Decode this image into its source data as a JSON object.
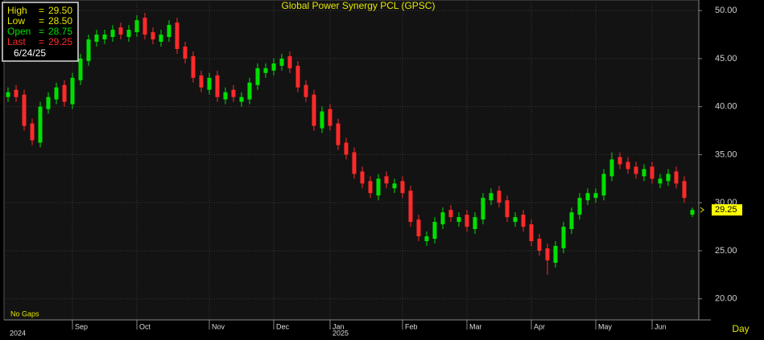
{
  "chart_data": {
    "type": "candlestick",
    "title": "Global Power Synergy PCL (GPSC)",
    "categories": [
      null,
      null,
      null,
      null,
      null,
      null,
      null,
      null,
      "Sep",
      null,
      null,
      null,
      null,
      null,
      null,
      null,
      "Oct",
      null,
      null,
      null,
      null,
      null,
      null,
      null,
      null,
      "Nov",
      null,
      null,
      null,
      null,
      null,
      null,
      null,
      "Dec",
      null,
      null,
      null,
      null,
      null,
      null,
      "Jan",
      null,
      null,
      null,
      null,
      null,
      null,
      null,
      null,
      "Feb",
      null,
      null,
      null,
      null,
      null,
      null,
      null,
      "Mar",
      null,
      null,
      null,
      null,
      null,
      null,
      null,
      "Apr",
      null,
      null,
      null,
      null,
      null,
      null,
      null,
      "May",
      null,
      null,
      null,
      null,
      null,
      null,
      "Jun",
      null,
      null,
      null,
      null,
      null
    ],
    "years": [
      "2024",
      "2025"
    ],
    "open": [
      41,
      41.75,
      41.25,
      38.25,
      36.25,
      39.75,
      40.75,
      42.25,
      40.25,
      42.75,
      44.75,
      46.75,
      47,
      47.25,
      48.25,
      47.25,
      47.75,
      49.25,
      47.75,
      46.75,
      47.25,
      48.75,
      46.25,
      45.25,
      43.25,
      41.75,
      43.25,
      40.75,
      41.75,
      40.5,
      40.75,
      42.25,
      43.5,
      43.75,
      44.25,
      45.25,
      44.25,
      42.25,
      41.25,
      37.75,
      39.75,
      38.25,
      36.25,
      35.25,
      33.25,
      32.25,
      30.75,
      32.75,
      31.5,
      32.25,
      31.25,
      28.25,
      26,
      26.25,
      27.75,
      29.25,
      28,
      28.75,
      27.25,
      28.25,
      30.25,
      31.25,
      30.25,
      28,
      28.75,
      27.75,
      26.25,
      25.25,
      23.75,
      25.25,
      27.25,
      28.75,
      30.25,
      30.5,
      30.75,
      32.75,
      34.75,
      34.25,
      33.75,
      32.75,
      33.75,
      32,
      32.25,
      33.25,
      32.25,
      28.75
    ],
    "high": [
      42,
      42.25,
      41.75,
      38.75,
      40.5,
      41.5,
      42.5,
      42.75,
      43.5,
      45.5,
      47.5,
      48,
      48,
      48.5,
      48.75,
      48.5,
      49.5,
      49.75,
      48.25,
      48,
      49,
      49.25,
      46.75,
      45.75,
      43.75,
      43.5,
      43.75,
      42,
      42.25,
      41.5,
      43,
      44.5,
      44.5,
      45,
      45.5,
      45.75,
      44.75,
      42.75,
      41.75,
      40,
      40.25,
      38.75,
      36.75,
      35.75,
      33.75,
      32.75,
      33,
      33.25,
      32.5,
      32.75,
      31.75,
      28.75,
      27,
      28.5,
      29.5,
      29.75,
      29,
      29.25,
      29,
      31,
      31.5,
      31.75,
      30.75,
      29,
      29.25,
      28.25,
      26.75,
      25.75,
      26,
      28,
      29.5,
      31,
      31.5,
      31.5,
      33.5,
      35.25,
      35.25,
      34.75,
      34.25,
      34,
      34.25,
      33,
      33.5,
      33.75,
      32.75,
      29.5
    ],
    "low": [
      40.5,
      40.5,
      37.5,
      36,
      35.75,
      39.25,
      40.25,
      40,
      39.75,
      42.25,
      44.25,
      46.25,
      46.5,
      46.75,
      47,
      46.75,
      47.25,
      47,
      46.5,
      46.25,
      46.75,
      45.5,
      44.5,
      42.5,
      41.5,
      41.25,
      40.5,
      40.25,
      40.5,
      40,
      40.25,
      41.75,
      43,
      43.25,
      43.75,
      43.5,
      41.5,
      40.5,
      37.5,
      37.25,
      37.5,
      35.5,
      34.5,
      32.5,
      31.5,
      30.5,
      30.25,
      31.5,
      31,
      30.5,
      27.5,
      26,
      25.5,
      25.75,
      27.25,
      28,
      27.5,
      27,
      26.75,
      27.75,
      29.75,
      29.5,
      28,
      27.5,
      27,
      25.5,
      24.5,
      22.5,
      23.25,
      24.75,
      26.75,
      28.25,
      29.75,
      30,
      30.25,
      32.25,
      33.5,
      33,
      32.5,
      32.25,
      32,
      31.5,
      31.75,
      31.5,
      30,
      28.5
    ],
    "close": [
      41.5,
      41,
      38,
      36.5,
      40,
      41,
      42,
      40.5,
      43,
      45,
      47,
      47.5,
      47.5,
      48,
      47.5,
      48,
      49,
      47.5,
      47,
      47.5,
      48.5,
      46,
      45,
      43,
      42,
      43,
      41,
      41.5,
      41,
      41,
      42.5,
      44,
      44,
      44.5,
      45,
      44,
      42,
      41,
      38,
      39.5,
      38,
      36,
      35,
      33,
      32,
      31,
      32.5,
      32,
      32,
      31,
      28,
      26.5,
      26.5,
      28,
      29,
      28.5,
      28.5,
      27.5,
      28.5,
      30.5,
      31,
      30,
      28.5,
      28.5,
      27.5,
      26,
      25,
      24,
      25.5,
      27.5,
      29,
      30.5,
      31,
      31,
      33,
      34.5,
      34,
      33.5,
      33,
      33.5,
      32.5,
      32.5,
      33,
      32,
      30.5,
      29.25
    ],
    "up_color": "#00e000",
    "down_color": "#ff2a2a",
    "ylim": [
      17.8,
      51.1
    ],
    "yticks": [
      {
        "value": 20,
        "label": "20.00"
      },
      {
        "value": 25,
        "label": "25.00"
      },
      {
        "value": 30,
        "label": "30.00"
      },
      {
        "value": 35,
        "label": "35.00"
      },
      {
        "value": 40,
        "label": "40.00"
      },
      {
        "value": 45,
        "label": "45.00"
      },
      {
        "value": 50,
        "label": "50.00"
      }
    ],
    "grid": true,
    "info": {
      "high_label": "High",
      "low_label": "Low",
      "open_label": "Open",
      "last_label": "Last",
      "separator": "=",
      "high": "29.50",
      "low": "28.50",
      "open": "28.75",
      "last": "29.25",
      "date": "6/24/25"
    },
    "gaps_note": "No Gaps",
    "period": "Day"
  }
}
